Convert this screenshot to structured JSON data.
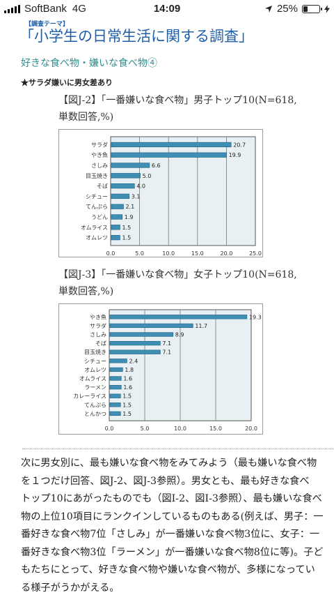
{
  "status_bar": {
    "carrier": "SoftBank",
    "network": "4G",
    "time": "14:09",
    "battery": "25%",
    "battery_level": 0.25,
    "icons": [
      "signal-icon",
      "location-arrow-icon",
      "battery-icon",
      "charging-bolt-icon"
    ]
  },
  "header": {
    "tag": "【調査テーマ】",
    "title": "「小学生の日常生活に関する調査」"
  },
  "section": {
    "title": "好きな食べ物・嫌いな食べ物④",
    "subheading": "★サラダ嫌いに男女差あり"
  },
  "figures": [
    {
      "caption_line1": "【図J-2】「一番嫌いな食べ物」男子トップ10(N=618,",
      "caption_line2": "単数回答,%)"
    },
    {
      "caption_line1": "【図J-3】「一番嫌いな食べ物」女子トップ10(N=618,",
      "caption_line2": "単数回答,%)"
    }
  ],
  "chart_data": [
    {
      "type": "bar",
      "orientation": "horizontal",
      "categories": [
        "サラダ",
        "やき魚",
        "さしみ",
        "目玉焼き",
        "そば",
        "シチュー",
        "てんぷら",
        "うどん",
        "オムライス",
        "オムレツ"
      ],
      "values": [
        20.7,
        19.9,
        6.6,
        5.0,
        4.0,
        3.1,
        2.1,
        1.9,
        1.5,
        1.5
      ],
      "value_labels": [
        "20.7",
        "19.9",
        "6.6",
        "5.0",
        "4.0",
        "3.1",
        "2.1",
        "1.9",
        "1.5",
        "1.5"
      ],
      "xlim": [
        0,
        25
      ],
      "ticks": [
        0,
        5,
        10,
        15,
        20,
        25
      ],
      "tick_labels": [
        "0.0",
        "5.0",
        "10.0",
        "15.0",
        "20.0",
        "25.0"
      ],
      "grid": true,
      "bar_color": "#3f8fb5",
      "plot_bg": "#e8f0f4"
    },
    {
      "type": "bar",
      "orientation": "horizontal",
      "categories": [
        "やき魚",
        "サラダ",
        "さしみ",
        "そば",
        "目玉焼き",
        "シチュー",
        "オムレツ",
        "オムライス",
        "ラーメン",
        "カレーライス",
        "てんぷら",
        "とんかつ"
      ],
      "values": [
        19.3,
        11.7,
        8.9,
        7.1,
        7.1,
        2.4,
        1.8,
        1.6,
        1.6,
        1.5,
        1.5,
        1.5
      ],
      "value_labels": [
        "19.3",
        "11.7",
        "8.9",
        "7.1",
        "7.1",
        "2.4",
        "1.8",
        "1.6",
        "1.6",
        "1.5",
        "1.5",
        "1.5"
      ],
      "xlim": [
        0,
        20
      ],
      "ticks": [
        0,
        5,
        10,
        15,
        20
      ],
      "tick_labels": [
        "0.0",
        "5.0",
        "10.0",
        "15.0",
        "20.0"
      ],
      "grid": true,
      "bar_color": "#3f8fb5",
      "plot_bg": "#e8f0f4"
    }
  ],
  "body": {
    "lines": [
      "次に男女別に、最も嫌いな食べ物をみてみよう（最も嫌いな食べ物",
      "を１つだけ回答、図J-2、図J-3参照）。男女とも、最も好きな食べ",
      "トップ10にあがったものでも（図I-2、図I-3参照）、最も嫌いな食べ",
      "物の上位10項目にランクインしているものもある(例えば、男子：一",
      "番好きな食べ物7位「さしみ」が一番嫌いな食べ物3位に、女子：一",
      "番好きな食べ物3位「ラーメン」が一番嫌いな食べ物8位に等)。子ど",
      "もたちにとって、好きな食べ物や嫌いな食べ物が、多様になってい",
      "る様子がうかがえる。"
    ]
  }
}
